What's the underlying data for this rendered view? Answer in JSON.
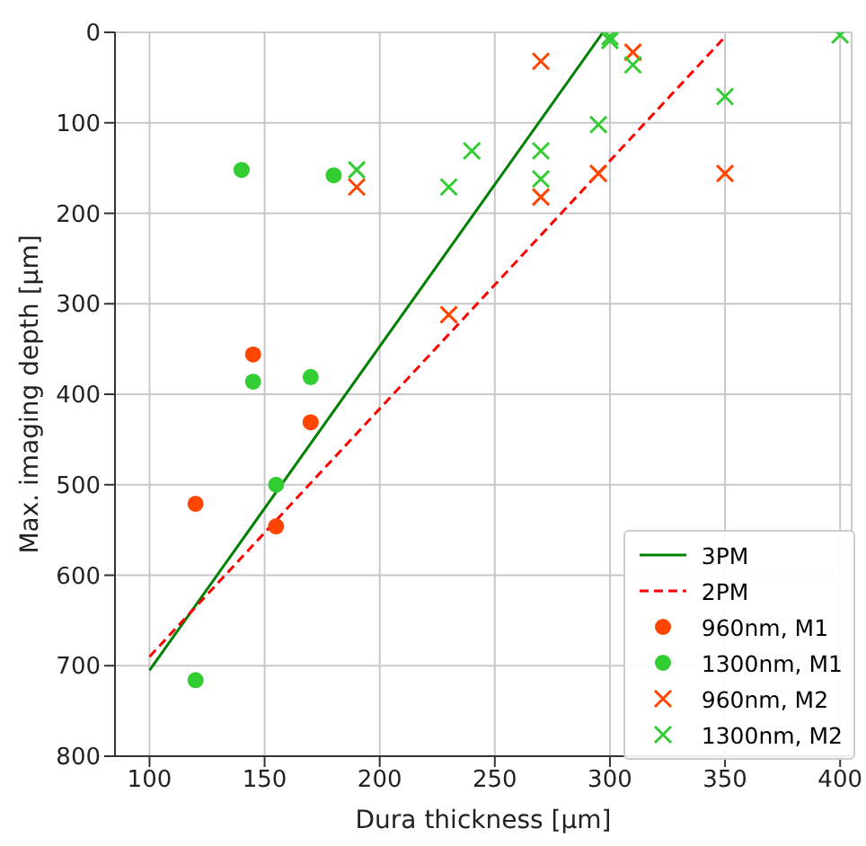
{
  "chart_data": {
    "type": "scatter",
    "xlabel": "Dura thickness [µm]",
    "ylabel": "Max. imaging depth [µm]",
    "xlim": [
      85,
      405
    ],
    "xticks": [
      100,
      150,
      200,
      250,
      300,
      350,
      400
    ],
    "ylim": [
      800,
      0
    ],
    "yticks": [
      0,
      100,
      200,
      300,
      400,
      500,
      600,
      700,
      800
    ],
    "grid": true,
    "legend": "bottom right",
    "series": [
      {
        "name": "3PM",
        "type": "line",
        "color": "#008000",
        "line_style": "solid",
        "x": [
          100,
          297
        ],
        "values": [
          705,
          0
        ]
      },
      {
        "name": "2PM",
        "type": "line",
        "color": "#ff0000",
        "line_style": "dashed",
        "x": [
          100,
          350
        ],
        "values": [
          690,
          5
        ]
      },
      {
        "name": "960nm, M1",
        "color": "#ff4500",
        "marker": "circle",
        "x": [
          120,
          145,
          155,
          170
        ],
        "values": [
          521,
          356,
          546,
          431
        ]
      },
      {
        "name": "1300nm, M1",
        "color": "#32cd32",
        "marker": "circle",
        "x": [
          120,
          140,
          145,
          155,
          170,
          180
        ],
        "values": [
          716,
          152,
          386,
          500,
          381,
          158
        ]
      },
      {
        "name": "960nm, M2",
        "color": "#ff4500",
        "marker": "cross",
        "x": [
          190,
          230,
          270,
          270,
          295,
          310,
          350
        ],
        "values": [
          171,
          312,
          32,
          182,
          156,
          22,
          156
        ]
      },
      {
        "name": "1300nm, M2",
        "color": "#32cd32",
        "marker": "cross",
        "x": [
          190,
          230,
          240,
          270,
          270,
          295,
          300,
          300,
          310,
          350,
          400
        ],
        "values": [
          152,
          171,
          131,
          131,
          162,
          102,
          5,
          9,
          36,
          71,
          3
        ]
      }
    ]
  }
}
